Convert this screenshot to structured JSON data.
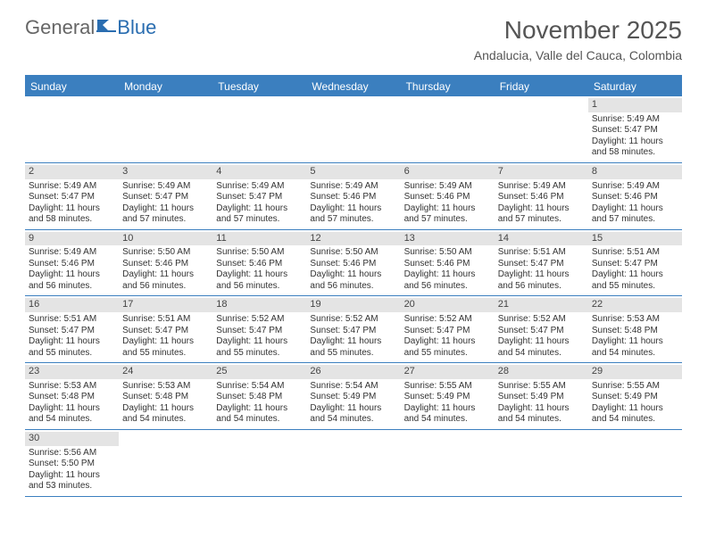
{
  "logo": {
    "text1": "General",
    "text2": "Blue"
  },
  "title": "November 2025",
  "location": "Andalucia, Valle del Cauca, Colombia",
  "header_bg": "#3b7fbf",
  "day_names": [
    "Sunday",
    "Monday",
    "Tuesday",
    "Wednesday",
    "Thursday",
    "Friday",
    "Saturday"
  ],
  "weeks": [
    [
      null,
      null,
      null,
      null,
      null,
      null,
      {
        "n": "1",
        "sr": "5:49 AM",
        "ss": "5:47 PM",
        "dl": "11 hours and 58 minutes."
      }
    ],
    [
      {
        "n": "2",
        "sr": "5:49 AM",
        "ss": "5:47 PM",
        "dl": "11 hours and 58 minutes."
      },
      {
        "n": "3",
        "sr": "5:49 AM",
        "ss": "5:47 PM",
        "dl": "11 hours and 57 minutes."
      },
      {
        "n": "4",
        "sr": "5:49 AM",
        "ss": "5:47 PM",
        "dl": "11 hours and 57 minutes."
      },
      {
        "n": "5",
        "sr": "5:49 AM",
        "ss": "5:46 PM",
        "dl": "11 hours and 57 minutes."
      },
      {
        "n": "6",
        "sr": "5:49 AM",
        "ss": "5:46 PM",
        "dl": "11 hours and 57 minutes."
      },
      {
        "n": "7",
        "sr": "5:49 AM",
        "ss": "5:46 PM",
        "dl": "11 hours and 57 minutes."
      },
      {
        "n": "8",
        "sr": "5:49 AM",
        "ss": "5:46 PM",
        "dl": "11 hours and 57 minutes."
      }
    ],
    [
      {
        "n": "9",
        "sr": "5:49 AM",
        "ss": "5:46 PM",
        "dl": "11 hours and 56 minutes."
      },
      {
        "n": "10",
        "sr": "5:50 AM",
        "ss": "5:46 PM",
        "dl": "11 hours and 56 minutes."
      },
      {
        "n": "11",
        "sr": "5:50 AM",
        "ss": "5:46 PM",
        "dl": "11 hours and 56 minutes."
      },
      {
        "n": "12",
        "sr": "5:50 AM",
        "ss": "5:46 PM",
        "dl": "11 hours and 56 minutes."
      },
      {
        "n": "13",
        "sr": "5:50 AM",
        "ss": "5:46 PM",
        "dl": "11 hours and 56 minutes."
      },
      {
        "n": "14",
        "sr": "5:51 AM",
        "ss": "5:47 PM",
        "dl": "11 hours and 56 minutes."
      },
      {
        "n": "15",
        "sr": "5:51 AM",
        "ss": "5:47 PM",
        "dl": "11 hours and 55 minutes."
      }
    ],
    [
      {
        "n": "16",
        "sr": "5:51 AM",
        "ss": "5:47 PM",
        "dl": "11 hours and 55 minutes."
      },
      {
        "n": "17",
        "sr": "5:51 AM",
        "ss": "5:47 PM",
        "dl": "11 hours and 55 minutes."
      },
      {
        "n": "18",
        "sr": "5:52 AM",
        "ss": "5:47 PM",
        "dl": "11 hours and 55 minutes."
      },
      {
        "n": "19",
        "sr": "5:52 AM",
        "ss": "5:47 PM",
        "dl": "11 hours and 55 minutes."
      },
      {
        "n": "20",
        "sr": "5:52 AM",
        "ss": "5:47 PM",
        "dl": "11 hours and 55 minutes."
      },
      {
        "n": "21",
        "sr": "5:52 AM",
        "ss": "5:47 PM",
        "dl": "11 hours and 54 minutes."
      },
      {
        "n": "22",
        "sr": "5:53 AM",
        "ss": "5:48 PM",
        "dl": "11 hours and 54 minutes."
      }
    ],
    [
      {
        "n": "23",
        "sr": "5:53 AM",
        "ss": "5:48 PM",
        "dl": "11 hours and 54 minutes."
      },
      {
        "n": "24",
        "sr": "5:53 AM",
        "ss": "5:48 PM",
        "dl": "11 hours and 54 minutes."
      },
      {
        "n": "25",
        "sr": "5:54 AM",
        "ss": "5:48 PM",
        "dl": "11 hours and 54 minutes."
      },
      {
        "n": "26",
        "sr": "5:54 AM",
        "ss": "5:49 PM",
        "dl": "11 hours and 54 minutes."
      },
      {
        "n": "27",
        "sr": "5:55 AM",
        "ss": "5:49 PM",
        "dl": "11 hours and 54 minutes."
      },
      {
        "n": "28",
        "sr": "5:55 AM",
        "ss": "5:49 PM",
        "dl": "11 hours and 54 minutes."
      },
      {
        "n": "29",
        "sr": "5:55 AM",
        "ss": "5:49 PM",
        "dl": "11 hours and 54 minutes."
      }
    ],
    [
      {
        "n": "30",
        "sr": "5:56 AM",
        "ss": "5:50 PM",
        "dl": "11 hours and 53 minutes."
      },
      null,
      null,
      null,
      null,
      null,
      null
    ]
  ],
  "labels": {
    "sunrise": "Sunrise: ",
    "sunset": "Sunset: ",
    "daylight": "Daylight: "
  }
}
